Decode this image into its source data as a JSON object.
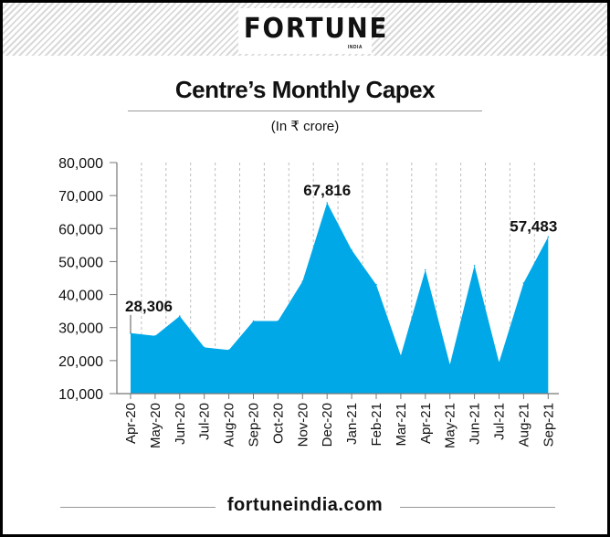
{
  "brand": {
    "logo": "FORTUNE",
    "logo_sub": "INDIA",
    "footer": "fortuneindia.com"
  },
  "chart_data": {
    "type": "area",
    "title": "Centre’s Monthly Capex",
    "subtitle": "(In ₹ crore)",
    "categories": [
      "Apr-20",
      "May-20",
      "Jun-20",
      "Jul-20",
      "Aug-20",
      "Sep-20",
      "Oct-20",
      "Nov-20",
      "Dec-20",
      "Jan-21",
      "Feb-21",
      "Mar-21",
      "Apr-21",
      "May-21",
      "Jun-21",
      "Jul-21",
      "Aug-21",
      "Sep-21"
    ],
    "values": [
      28306,
      27500,
      33500,
      24000,
      23200,
      32000,
      32000,
      44000,
      67816,
      53500,
      43000,
      21500,
      47500,
      18800,
      48800,
      19500,
      43500,
      57483
    ],
    "data_labels": [
      {
        "index": 0,
        "text": "28,306"
      },
      {
        "index": 8,
        "text": "67,816"
      },
      {
        "index": 17,
        "text": "57,483"
      }
    ],
    "y_ticks": [
      "10,000",
      "20,000",
      "30,000",
      "40,000",
      "50,000",
      "60,000",
      "70,000",
      "80,000"
    ],
    "ylim": [
      10000,
      80000
    ],
    "grid": "vertical-dashed",
    "fill_color": "#00a8e8",
    "axis_color": "#777777"
  }
}
